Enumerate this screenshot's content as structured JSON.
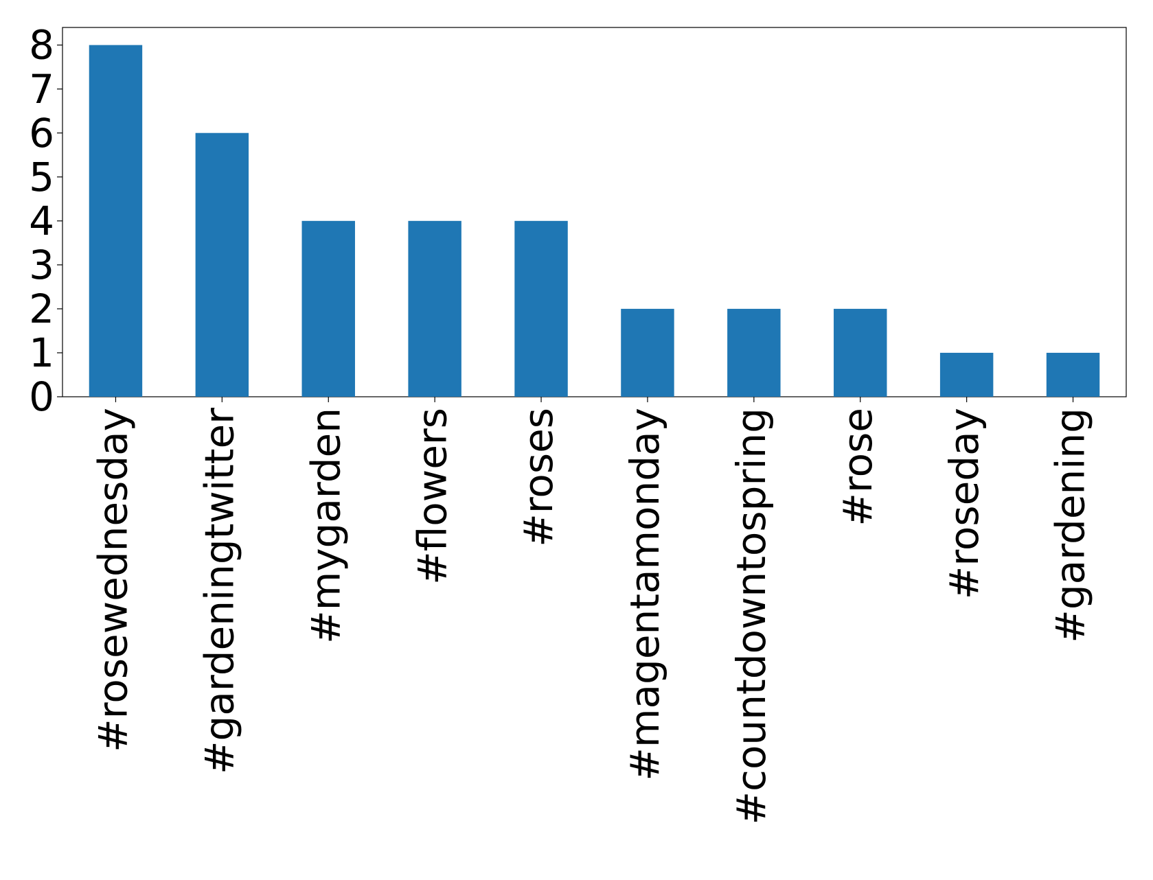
{
  "chart_data": {
    "type": "bar",
    "categories": [
      "#rosewednesday",
      "#gardeningtwitter",
      "#mygarden",
      "#flowers",
      "#roses",
      "#magentamonday",
      "#countdowntospring",
      "#rose",
      "#roseday",
      "#gardening"
    ],
    "values": [
      8,
      6,
      4,
      4,
      4,
      2,
      2,
      2,
      1,
      1
    ],
    "color": "#1f77b4",
    "ylim": [
      0,
      8.4
    ],
    "yticks": [
      0,
      1,
      2,
      3,
      4,
      5,
      6,
      7,
      8
    ],
    "grid": false
  }
}
